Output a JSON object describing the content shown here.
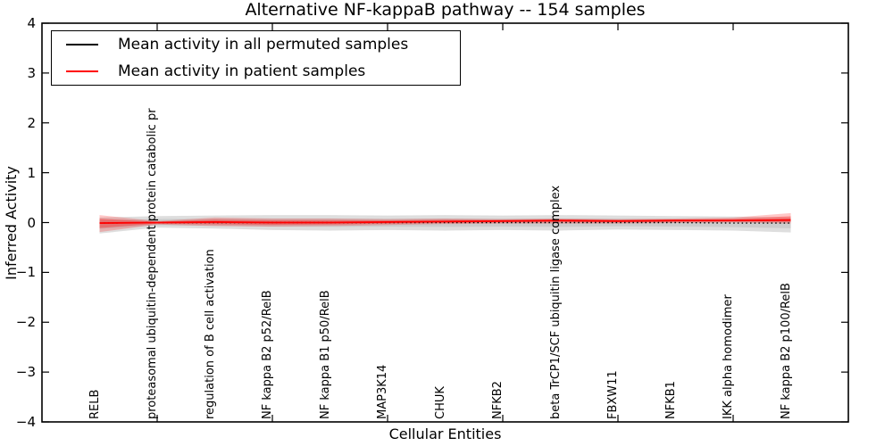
{
  "chart_data": {
    "type": "line",
    "title": "Alternative NF-kappaB pathway -- 154 samples",
    "xlabel": "Cellular Entities",
    "ylabel": "Inferred Activity",
    "ylim": [
      -4,
      4
    ],
    "yticks": [
      4,
      3,
      2,
      1,
      0,
      -1,
      -2,
      -3,
      -4
    ],
    "xlim": [
      -1,
      13
    ],
    "xtick_marks_at": [
      1,
      3,
      5,
      7,
      9,
      11
    ],
    "grid": false,
    "legend_position": "upper left",
    "categories": [
      "RELB",
      "proteasomal ubiquitin-dependent protein catabolic pr",
      "regulation of B cell activation",
      "NF kappa B2 p52/RelB",
      "NF kappa B1 p50/RelB",
      "MAP3K14",
      "CHUK",
      "NFKB2",
      "beta TrCP1/SCF ubiquitin ligase complex",
      "FBXW11",
      "NFKB1",
      "IKK alpha homodimer",
      "NF kappa B2 p100/RelB"
    ],
    "series": [
      {
        "name": "Mean activity in all permuted samples",
        "color": "#000000",
        "style": "dotted",
        "values": [
          -0.01,
          0.0,
          0.0,
          0.0,
          0.0,
          0.0,
          0.0,
          0.0,
          0.0,
          0.0,
          0.0,
          -0.01,
          -0.01
        ]
      },
      {
        "name": "Mean activity in patient samples",
        "color": "#ff0000",
        "style": "solid",
        "values": [
          -0.01,
          0.0,
          0.01,
          0.0,
          0.0,
          0.01,
          0.02,
          0.03,
          0.04,
          0.03,
          0.04,
          0.04,
          0.05
        ]
      }
    ],
    "bands": [
      {
        "name": "permuted samples range",
        "color": "#000000",
        "outer_opacity": 0.13,
        "inner_opacity": 0.08,
        "upper": [
          0.1,
          0.13,
          0.14,
          0.15,
          0.15,
          0.14,
          0.15,
          0.14,
          0.15,
          0.14,
          0.13,
          0.12,
          0.1
        ],
        "lower": [
          -0.22,
          -0.1,
          -0.12,
          -0.15,
          -0.16,
          -0.15,
          -0.16,
          -0.15,
          -0.16,
          -0.14,
          -0.15,
          -0.16,
          -0.2
        ]
      },
      {
        "name": "patient samples range",
        "color": "#ff0000",
        "outer_opacity": 0.22,
        "inner_opacity": 0.3,
        "upper": [
          0.15,
          0.03,
          0.1,
          0.08,
          0.08,
          0.07,
          0.08,
          0.07,
          0.08,
          0.07,
          0.08,
          0.1,
          0.19
        ],
        "lower": [
          -0.19,
          -0.04,
          -0.07,
          -0.08,
          -0.07,
          -0.05,
          -0.03,
          -0.02,
          -0.02,
          -0.02,
          -0.01,
          0.0,
          -0.02
        ]
      }
    ]
  }
}
